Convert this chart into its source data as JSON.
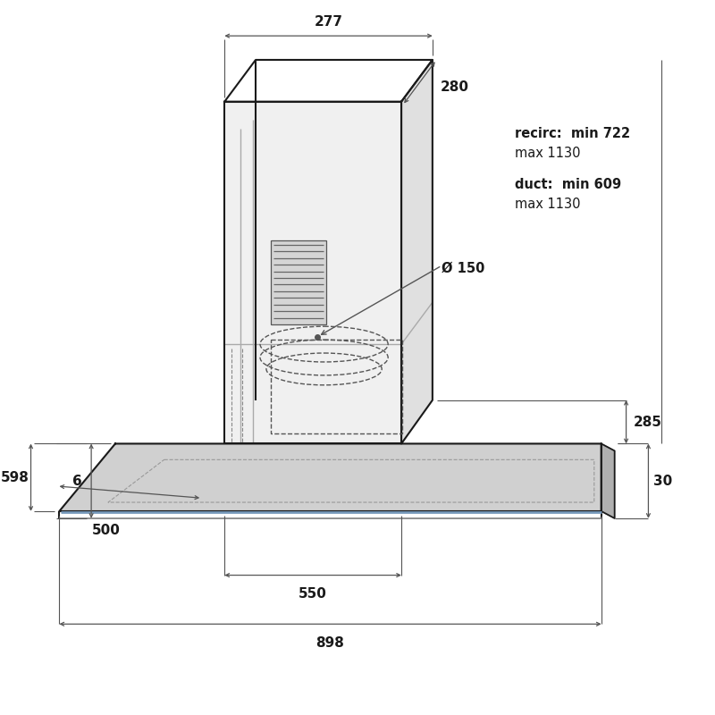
{
  "bg_color": "#ffffff",
  "line_color": "#1a1a1a",
  "dim_color": "#555555",
  "gray_dark": "#b0b0b0",
  "gray_mid": "#c8c8c8",
  "gray_light": "#e0e0e0",
  "gray_vlight": "#f0f0f0",
  "blue_edge": "#7799bb",
  "annotations": {
    "w277": "277",
    "d280": "280",
    "recirc1": "recirc:  min 722",
    "recirc2": "max 1130",
    "duct1": "duct:  min 609",
    "duct2": "max 1130",
    "h285": "285",
    "diam": "Ø 150",
    "t6": "6",
    "t30": "30",
    "d500": "500",
    "d598": "598",
    "d550": "550",
    "d898": "898"
  },
  "figsize": [
    8.0,
    8.0
  ],
  "dpi": 100
}
